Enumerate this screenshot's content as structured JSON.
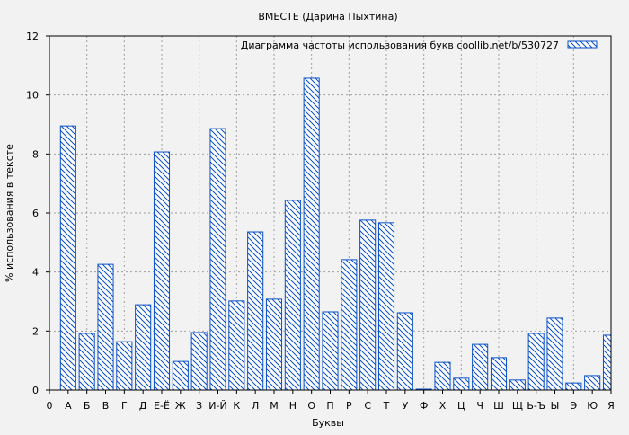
{
  "chart_data": {
    "type": "bar",
    "title": "ВМЕСТЕ (Дарина Пыхтина)",
    "xlabel": "Буквы",
    "ylabel": "% использования в тексте",
    "legend": {
      "label": "Диаграмма частоты использования букв  coollib.net/b/530727",
      "placement": "top-right"
    },
    "x_ticks": [
      "0",
      "А",
      "Б",
      "В",
      "Г",
      "Д",
      "Е-Ё",
      "Ж",
      "З",
      "И-Й",
      "К",
      "Л",
      "М",
      "Н",
      "О",
      "П",
      "Р",
      "С",
      "Т",
      "У",
      "Ф",
      "Х",
      "Ц",
      "Ч",
      "Ш",
      "Щ",
      "Ь-Ъ",
      "Ы",
      "Э",
      "Ю",
      "Я"
    ],
    "categories": [
      "А",
      "Б",
      "В",
      "Г",
      "Д",
      "Е-Ё",
      "Ж",
      "З",
      "И-Й",
      "К",
      "Л",
      "М",
      "Н",
      "О",
      "П",
      "Р",
      "С",
      "Т",
      "У",
      "Ф",
      "Х",
      "Ц",
      "Ч",
      "Ш",
      "Щ",
      "Ь-Ъ",
      "Ы",
      "Э",
      "Ю",
      "Я"
    ],
    "values": [
      8.95,
      1.92,
      4.26,
      1.64,
      2.89,
      8.07,
      0.97,
      1.95,
      8.86,
      3.02,
      5.36,
      3.08,
      6.43,
      10.57,
      2.65,
      4.42,
      5.76,
      5.67,
      2.62,
      0.03,
      0.94,
      0.4,
      1.55,
      1.1,
      0.34,
      1.92,
      2.44,
      0.24,
      0.49,
      1.86
    ],
    "xlim": [
      0,
      30
    ],
    "ylim": [
      0,
      12
    ],
    "y_ticks": [
      0,
      2,
      4,
      6,
      8,
      10,
      12
    ],
    "grid": true,
    "colors": {
      "bar": "#0a50c8",
      "background": "#f2f2f2",
      "grid": "#a0a0a0"
    }
  }
}
